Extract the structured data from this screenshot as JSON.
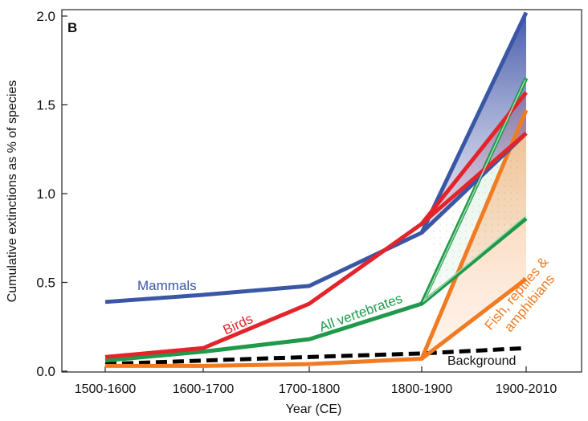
{
  "chart_data": {
    "type": "line",
    "panel_label": "B",
    "xlabel": "Year (CE)",
    "ylabel": "Cumulative extinctions as % of species",
    "categories": [
      "1500-1600",
      "1600-1700",
      "1700-1800",
      "1800-1900",
      "1900-2010"
    ],
    "ylim": [
      0,
      2.0
    ],
    "yticks": [
      "0.0",
      "0.5",
      "1.0",
      "1.5",
      "2.0"
    ],
    "grid": false,
    "series": [
      {
        "name": "Mammals",
        "label": "Mammals",
        "color": "#3a57a5",
        "values": [
          0.39,
          0.43,
          0.48,
          0.78,
          2.02
        ],
        "lower_bound_end": 1.34
      },
      {
        "name": "Birds",
        "label": "Birds",
        "color": "#e3242b",
        "values": [
          0.08,
          0.13,
          0.38,
          0.83,
          1.57
        ],
        "lower_bound_end": 1.34
      },
      {
        "name": "All vertebrates",
        "label": "All vertebrates",
        "color": "#1f9a4a",
        "values": [
          0.06,
          0.11,
          0.18,
          0.38,
          1.65
        ],
        "lower_bound_end": 0.86
      },
      {
        "name": "Fish, reptiles & amphibians",
        "label_lines": [
          "Fish, reptiles &",
          "amphibians"
        ],
        "color": "#f07b22",
        "values": [
          0.03,
          0.03,
          0.04,
          0.07,
          1.47
        ],
        "lower_bound_end": 0.52
      },
      {
        "name": "Background",
        "label": "Background",
        "color": "#000000",
        "dashed": true,
        "values": [
          0.04,
          0.06,
          0.08,
          0.1,
          0.13
        ]
      }
    ]
  }
}
